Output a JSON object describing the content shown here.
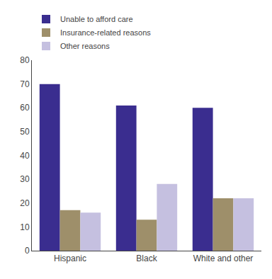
{
  "chart_data": {
    "type": "bar",
    "categories": [
      "Hispanic",
      "Black",
      "White and other"
    ],
    "series": [
      {
        "name": "Unable to afford care",
        "color": "#3a2d8f",
        "values": [
          70,
          61,
          60
        ]
      },
      {
        "name": "Insurance-related reasons",
        "color": "#9e8f6a",
        "values": [
          17,
          13,
          22
        ]
      },
      {
        "name": "Other reasons",
        "color": "#c5c0e0",
        "values": [
          16,
          28,
          22
        ]
      }
    ],
    "ylim": [
      0,
      80
    ],
    "yticks": [
      0,
      10,
      20,
      30,
      40,
      50,
      60,
      70,
      80
    ],
    "grid": false,
    "legend": "upper left"
  }
}
